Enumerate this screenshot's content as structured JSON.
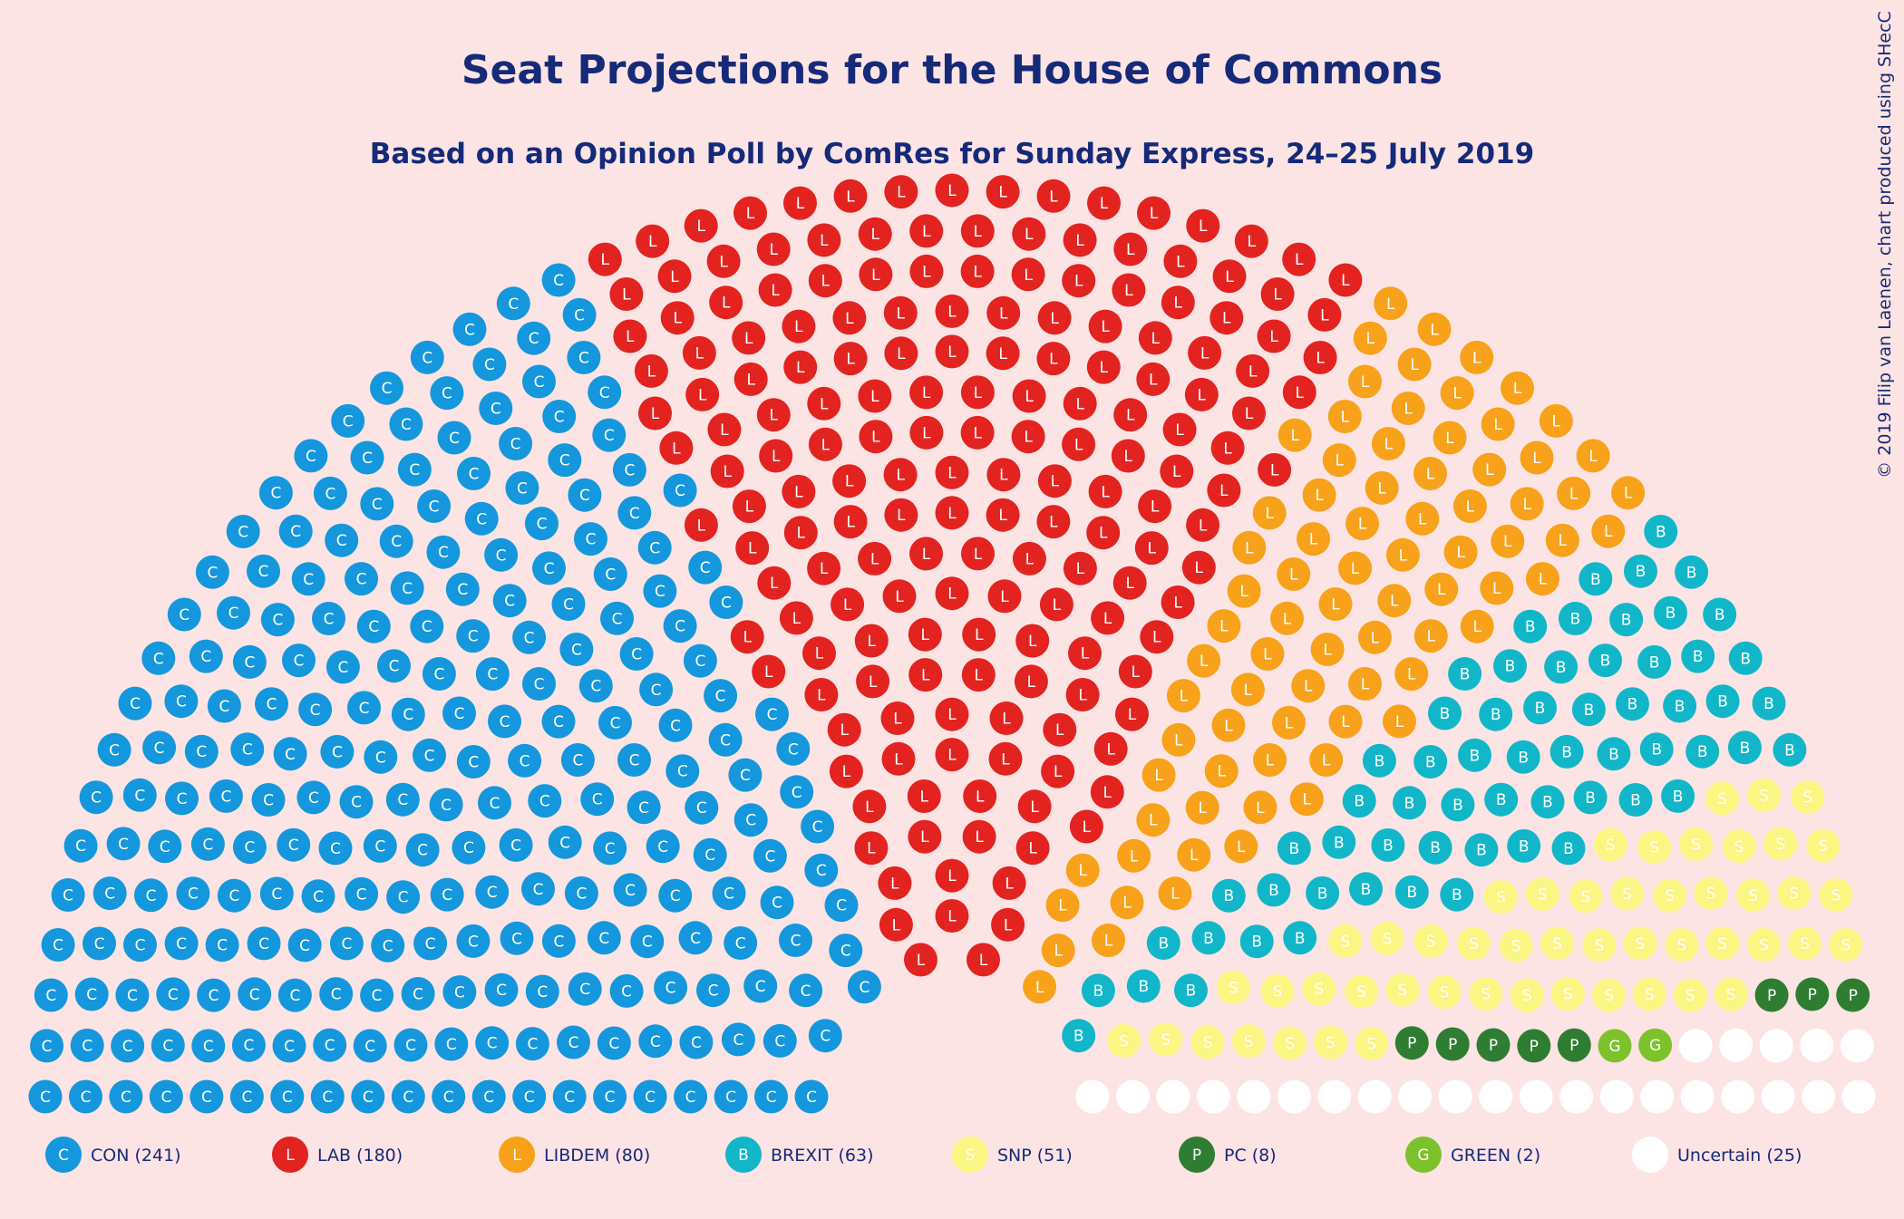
{
  "chart_data": {
    "type": "parliament",
    "title": "Seat Projections for the House of Commons",
    "subtitle": "Based on an Opinion Poll by ComRes for Sunday Express, 24–25 July 2019",
    "total_seats": 650,
    "parties": [
      {
        "key": "CON",
        "letter": "C",
        "seats": 241,
        "color": "#1497dc",
        "text_color": "#ffffff",
        "legend": "CON (241)"
      },
      {
        "key": "LAB",
        "letter": "L",
        "seats": 180,
        "color": "#e3231f",
        "text_color": "#ffffff",
        "legend": "LAB (180)"
      },
      {
        "key": "LIBDEM",
        "letter": "L",
        "seats": 80,
        "color": "#f7a21a",
        "text_color": "#ffffff",
        "legend": "LIBDEM (80)"
      },
      {
        "key": "BREXIT",
        "letter": "B",
        "seats": 63,
        "color": "#12b6c9",
        "text_color": "#ffffff",
        "legend": "BREXIT (63)"
      },
      {
        "key": "SNP",
        "letter": "S",
        "seats": 51,
        "color": "#fbf583",
        "text_color": "#ffffff",
        "legend": "SNP (51)"
      },
      {
        "key": "PC",
        "letter": "P",
        "seats": 8,
        "color": "#2e7d32",
        "text_color": "#ffffff",
        "legend": "PC (8)"
      },
      {
        "key": "GREEN",
        "letter": "G",
        "seats": 2,
        "color": "#7cc22a",
        "text_color": "#ffffff",
        "legend": "GREEN (2)"
      },
      {
        "key": "Uncertain",
        "letter": "",
        "seats": 25,
        "color": "#ffffff",
        "text_color": "#ffffff",
        "legend": "Uncertain (25)"
      }
    ]
  },
  "copyright": "© 2019 Filip van Laenen, chart produced using SHecC"
}
